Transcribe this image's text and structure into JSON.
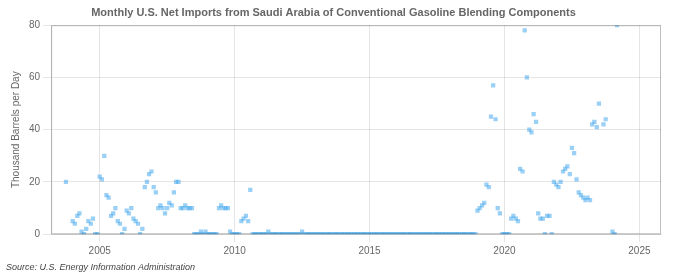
{
  "chart_data": {
    "type": "scatter",
    "title": "Monthly U.S. Net Imports from Saudi Arabia of Conventional Gasoline Blending Components",
    "ylabel": "Thousand Barrels per Day",
    "annotations": [
      "Source: U.S. Energy Information Administration"
    ],
    "marker": "square",
    "grid": true,
    "xlim": [
      2003.2,
      2025.8
    ],
    "xticks": [
      2005,
      2010,
      2015,
      2020,
      2025
    ],
    "ylim": [
      0,
      80
    ],
    "yticks": [
      0,
      20,
      40,
      60,
      80
    ],
    "x": [
      2003.75,
      2004.0,
      2004.08,
      2004.17,
      2004.25,
      2004.33,
      2004.42,
      2004.5,
      2004.58,
      2004.67,
      2004.75,
      2004.83,
      2004.92,
      2005.0,
      2005.08,
      2005.17,
      2005.25,
      2005.33,
      2005.42,
      2005.5,
      2005.58,
      2005.67,
      2005.75,
      2005.83,
      2005.92,
      2006.0,
      2006.08,
      2006.17,
      2006.25,
      2006.33,
      2006.42,
      2006.5,
      2006.58,
      2006.67,
      2006.75,
      2006.83,
      2006.92,
      2007.0,
      2007.08,
      2007.17,
      2007.25,
      2007.33,
      2007.42,
      2007.5,
      2007.58,
      2007.67,
      2007.75,
      2007.83,
      2007.92,
      2008.0,
      2008.08,
      2008.17,
      2008.25,
      2008.33,
      2008.42,
      2008.5,
      2008.58,
      2008.67,
      2008.75,
      2008.83,
      2008.92,
      2009.0,
      2009.08,
      2009.17,
      2009.25,
      2009.33,
      2009.42,
      2009.5,
      2009.58,
      2009.67,
      2009.75,
      2009.83,
      2009.92,
      2010.0,
      2010.08,
      2010.17,
      2010.25,
      2010.33,
      2010.42,
      2010.5,
      2010.58,
      2010.67,
      2010.75,
      2010.83,
      2010.92,
      2011.0,
      2011.08,
      2011.17,
      2011.25,
      2011.33,
      2011.42,
      2011.5,
      2011.58,
      2011.67,
      2011.75,
      2011.83,
      2011.92,
      2012.0,
      2012.08,
      2012.17,
      2012.25,
      2012.33,
      2012.42,
      2012.5,
      2012.58,
      2012.67,
      2012.75,
      2012.83,
      2012.92,
      2013.0,
      2013.08,
      2013.17,
      2013.25,
      2013.33,
      2013.42,
      2013.5,
      2013.58,
      2013.67,
      2013.75,
      2013.83,
      2013.92,
      2014.0,
      2014.08,
      2014.17,
      2014.25,
      2014.33,
      2014.42,
      2014.5,
      2014.58,
      2014.67,
      2014.75,
      2014.83,
      2014.92,
      2015.0,
      2015.08,
      2015.17,
      2015.25,
      2015.33,
      2015.42,
      2015.5,
      2015.58,
      2015.67,
      2015.75,
      2015.83,
      2015.92,
      2016.0,
      2016.08,
      2016.17,
      2016.25,
      2016.33,
      2016.42,
      2016.5,
      2016.58,
      2016.67,
      2016.75,
      2016.83,
      2016.92,
      2017.0,
      2017.08,
      2017.17,
      2017.25,
      2017.33,
      2017.42,
      2017.5,
      2017.58,
      2017.67,
      2017.75,
      2017.83,
      2017.92,
      2018.0,
      2018.08,
      2018.17,
      2018.25,
      2018.33,
      2018.42,
      2018.5,
      2018.58,
      2018.67,
      2018.75,
      2018.83,
      2018.92,
      2019.0,
      2019.08,
      2019.17,
      2019.25,
      2019.33,
      2019.42,
      2019.5,
      2019.58,
      2019.67,
      2019.75,
      2019.83,
      2019.92,
      2020.0,
      2020.08,
      2020.17,
      2020.25,
      2020.33,
      2020.42,
      2020.5,
      2020.58,
      2020.67,
      2020.75,
      2020.83,
      2020.92,
      2021.0,
      2021.08,
      2021.17,
      2021.25,
      2021.33,
      2021.42,
      2021.5,
      2021.58,
      2021.67,
      2021.75,
      2021.83,
      2021.92,
      2022.0,
      2022.08,
      2022.17,
      2022.25,
      2022.33,
      2022.42,
      2022.5,
      2022.58,
      2022.67,
      2022.75,
      2022.83,
      2022.92,
      2023.0,
      2023.08,
      2023.17,
      2023.25,
      2023.33,
      2023.42,
      2023.5,
      2023.67,
      2023.75,
      2024.0,
      2024.08,
      2024.17
    ],
    "values": [
      20,
      5,
      4,
      7,
      8,
      1,
      0,
      2,
      5,
      4,
      6,
      0,
      0,
      22,
      21,
      30,
      15,
      14,
      7,
      8,
      10,
      5,
      4,
      0,
      2,
      9,
      8,
      10,
      6,
      5,
      4,
      0,
      2,
      18,
      20,
      23,
      24,
      18,
      16,
      10,
      11,
      10,
      8,
      10,
      12,
      11,
      16,
      20,
      20,
      10,
      10,
      11,
      10,
      10,
      10,
      0,
      0,
      0,
      1,
      0,
      1,
      0,
      0,
      0,
      0,
      0,
      10,
      11,
      10,
      10,
      10,
      1,
      0,
      0,
      0,
      0,
      5,
      6,
      7,
      5,
      17,
      0,
      0,
      0,
      0,
      0,
      0,
      0,
      1,
      0,
      0,
      0,
      0,
      0,
      0,
      0,
      0,
      0,
      0,
      0,
      0,
      0,
      0,
      1,
      0,
      0,
      0,
      0,
      0,
      0,
      0,
      0,
      0,
      0,
      0,
      0,
      0,
      0,
      0,
      0,
      0,
      0,
      0,
      0,
      0,
      0,
      0,
      0,
      0,
      0,
      0,
      0,
      0,
      0,
      0,
      0,
      0,
      0,
      0,
      0,
      0,
      0,
      0,
      0,
      0,
      0,
      0,
      0,
      0,
      0,
      0,
      0,
      0,
      0,
      0,
      0,
      0,
      0,
      0,
      0,
      0,
      0,
      0,
      0,
      0,
      0,
      0,
      0,
      0,
      0,
      0,
      0,
      0,
      0,
      0,
      0,
      0,
      0,
      0,
      0,
      0,
      9,
      10,
      11,
      12,
      19,
      18,
      45,
      57,
      44,
      10,
      8,
      0,
      0,
      0,
      0,
      6,
      7,
      6,
      5,
      25,
      24,
      78,
      60,
      40,
      39,
      46,
      43,
      8,
      6,
      6,
      0,
      7,
      7,
      0,
      20,
      19,
      18,
      20,
      24,
      25,
      26,
      23,
      33,
      31,
      21,
      16,
      15,
      14,
      13,
      14,
      13,
      42,
      43,
      41,
      50,
      42,
      44,
      1,
      0,
      80
    ]
  }
}
